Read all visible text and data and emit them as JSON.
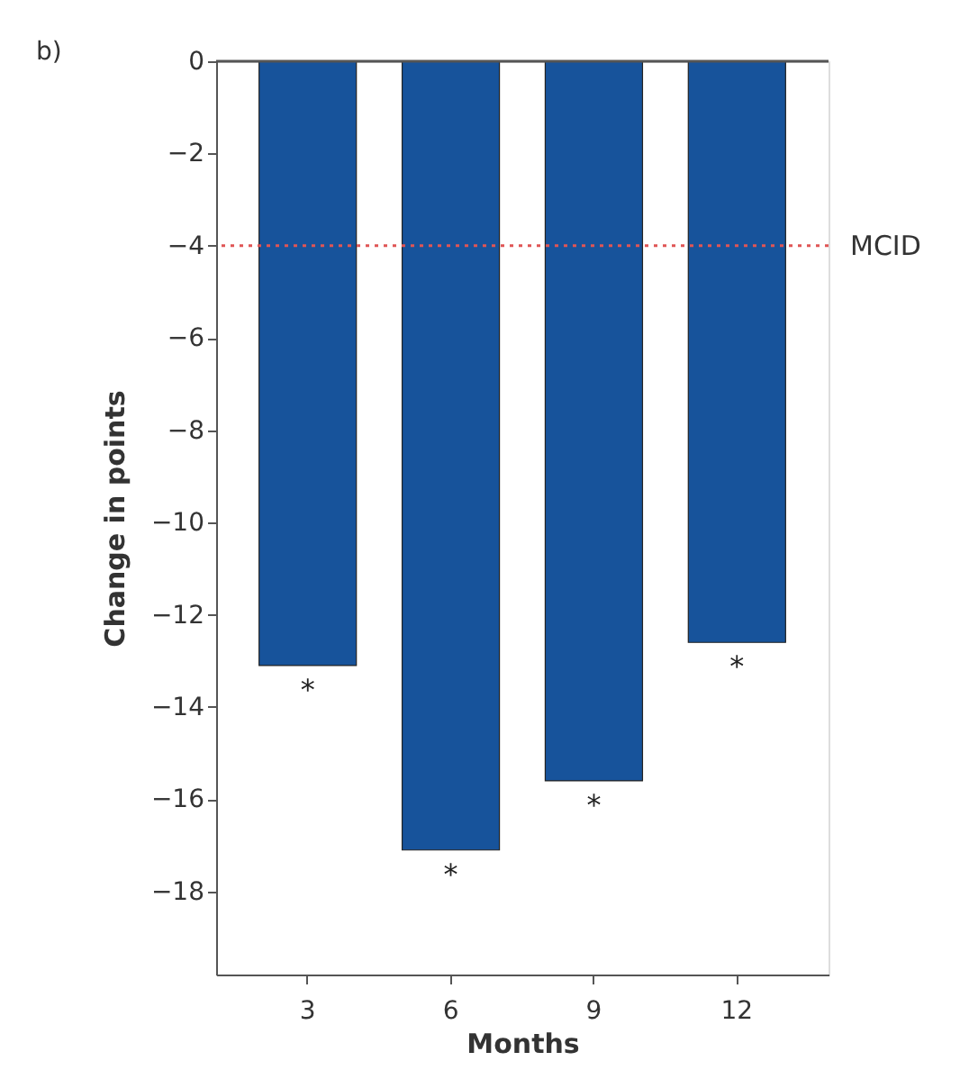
{
  "chart_data": {
    "type": "bar",
    "xlabel": "Months",
    "ylabel": "Change in points",
    "categories": [
      "3",
      "6",
      "9",
      "12"
    ],
    "values": [
      -13.1,
      -17.1,
      -15.6,
      -12.6
    ],
    "color": "#17539b",
    "ylim": [
      -19.8,
      0
    ],
    "yticks": [
      0,
      -2,
      -4,
      -6,
      -8,
      -10,
      -12,
      -14,
      -16,
      -18
    ],
    "grid": false,
    "ref_lines": [
      {
        "axis": "y",
        "value": 0,
        "label": null,
        "color": "#555555",
        "line_style": "solid"
      },
      {
        "axis": "y",
        "value": -4,
        "label": "MCID",
        "color": "#e05555",
        "line_style": "dotted"
      }
    ],
    "annotations": [
      "b)",
      {
        "text": "*",
        "x": "3",
        "y": -13.1
      },
      {
        "text": "*",
        "x": "6",
        "y": -17.1
      },
      {
        "text": "*",
        "x": "9",
        "y": -15.6
      },
      {
        "text": "*",
        "x": "12",
        "y": -12.6
      }
    ]
  }
}
